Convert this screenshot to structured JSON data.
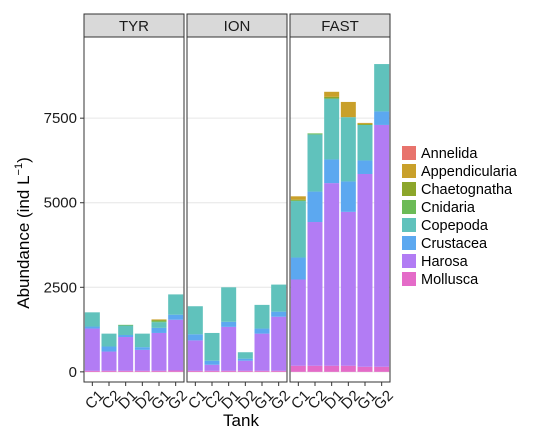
{
  "chart_data": {
    "type": "bar",
    "stacked": true,
    "faceted": true,
    "xlabel": "Tank",
    "ylabel": "Abundance (ind L",
    "ylabel_superscript": "−1",
    "ylabel_close": ")",
    "ylim": [
      -300,
      9900
    ],
    "yticks": [
      0,
      2500,
      5000,
      7500
    ],
    "ytick_labels": [
      "0",
      "2500",
      "5000",
      "7500"
    ],
    "grid": true,
    "legend_position": "right",
    "series_colors": {
      "Annelida": "#E8736C",
      "Appendicularia": "#C9A02A",
      "Chaetognatha": "#8CA62B",
      "Cnidaria": "#6CBB56",
      "Copepoda": "#60C2BC",
      "Crustacea": "#5CA8F0",
      "Harosa": "#B27CF4",
      "Mollusca": "#E46BC8"
    },
    "series_order": [
      "Mollusca",
      "Harosa",
      "Crustacea",
      "Copepoda",
      "Cnidaria",
      "Chaetognatha",
      "Appendicularia",
      "Annelida"
    ],
    "legend_items": [
      "Annelida",
      "Appendicularia",
      "Chaetognatha",
      "Cnidaria",
      "Copepoda",
      "Crustacea",
      "Harosa",
      "Mollusca"
    ],
    "facets": [
      {
        "label": "TYR",
        "categories": [
          "C1",
          "C2",
          "D1",
          "D2",
          "G1",
          "G2"
        ],
        "bars": [
          {
            "Mollusca": 30,
            "Harosa": 1250,
            "Crustacea": 60,
            "Copepoda": 420
          },
          {
            "Mollusca": 30,
            "Harosa": 570,
            "Crustacea": 150,
            "Copepoda": 380
          },
          {
            "Mollusca": 30,
            "Harosa": 1000,
            "Crustacea": 60,
            "Copepoda": 280,
            "Cnidaria": 20
          },
          {
            "Mollusca": 30,
            "Harosa": 620,
            "Crustacea": 80,
            "Copepoda": 400
          },
          {
            "Mollusca": 30,
            "Harosa": 1120,
            "Crustacea": 150,
            "Copepoda": 170,
            "Cnidaria": 30,
            "Chaetognatha": 30,
            "Appendicularia": 20
          },
          {
            "Mollusca": 40,
            "Harosa": 1500,
            "Crustacea": 150,
            "Copepoda": 600
          }
        ]
      },
      {
        "label": "ION",
        "categories": [
          "C1",
          "C2",
          "D1",
          "D2",
          "G1",
          "G2"
        ],
        "bars": [
          {
            "Mollusca": 30,
            "Harosa": 900,
            "Crustacea": 180,
            "Copepoda": 830
          },
          {
            "Mollusca": 30,
            "Harosa": 180,
            "Crustacea": 120,
            "Copepoda": 820
          },
          {
            "Mollusca": 30,
            "Harosa": 1300,
            "Crustacea": 150,
            "Copepoda": 1020
          },
          {
            "Mollusca": 30,
            "Harosa": 300,
            "Crustacea": 60,
            "Copepoda": 190
          },
          {
            "Mollusca": 30,
            "Harosa": 1100,
            "Crustacea": 150,
            "Copepoda": 700
          },
          {
            "Mollusca": 30,
            "Harosa": 1600,
            "Crustacea": 150,
            "Copepoda": 800
          }
        ]
      },
      {
        "label": "FAST",
        "categories": [
          "C1",
          "C2",
          "D1",
          "D2",
          "G1",
          "G2"
        ],
        "bars": [
          {
            "Mollusca": 180,
            "Harosa": 2550,
            "Crustacea": 650,
            "Copepoda": 1670,
            "Cnidaria": 20,
            "Chaetognatha": 20,
            "Appendicularia": 100
          },
          {
            "Mollusca": 180,
            "Harosa": 4250,
            "Crustacea": 900,
            "Copepoda": 1690,
            "Cnidaria": 30
          },
          {
            "Mollusca": 180,
            "Harosa": 5400,
            "Crustacea": 700,
            "Copepoda": 1800,
            "Chaetognatha": 50,
            "Appendicularia": 150
          },
          {
            "Mollusca": 180,
            "Harosa": 4550,
            "Crustacea": 900,
            "Copepoda": 1900,
            "Appendicularia": 450
          },
          {
            "Mollusca": 150,
            "Harosa": 5700,
            "Crustacea": 400,
            "Copepoda": 1050,
            "Chaetognatha": 30,
            "Appendicularia": 30
          },
          {
            "Mollusca": 150,
            "Harosa": 7150,
            "Crustacea": 400,
            "Copepoda": 1400
          }
        ]
      }
    ]
  }
}
